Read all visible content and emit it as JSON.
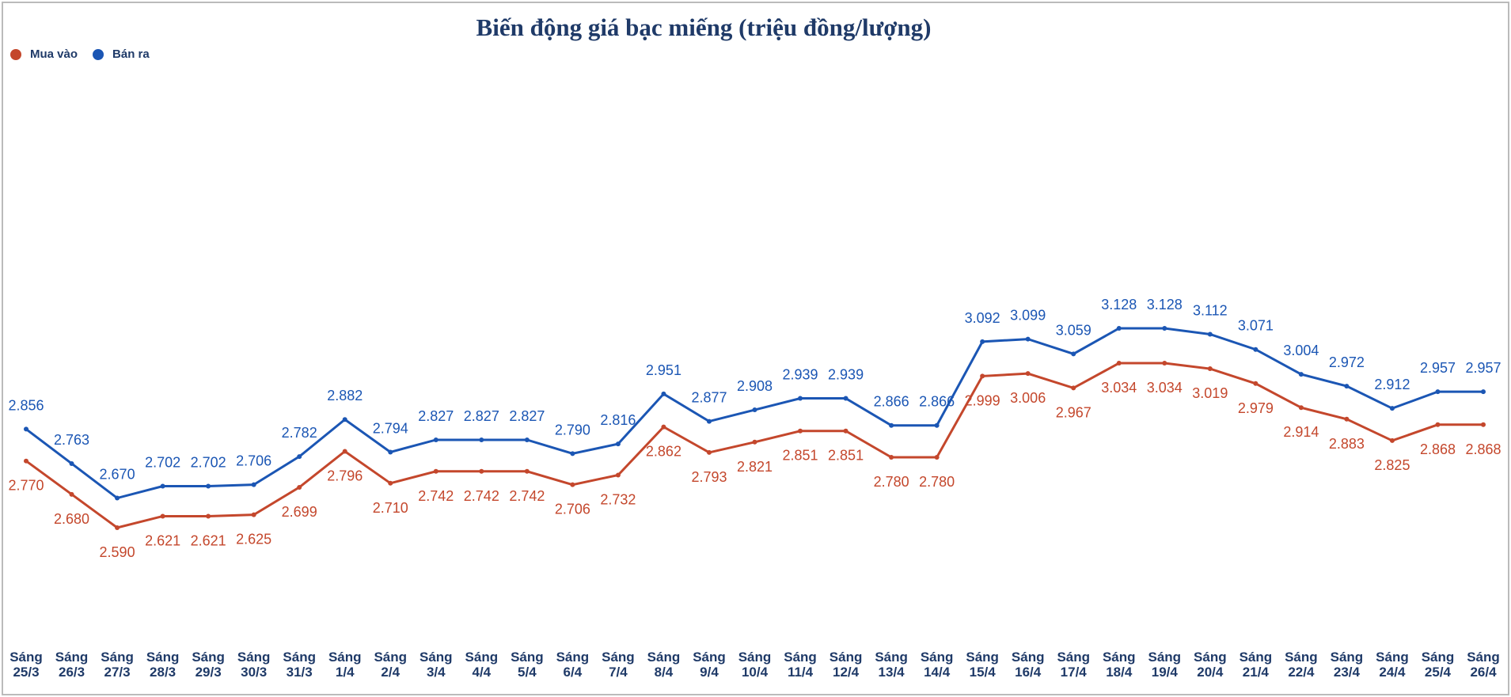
{
  "chart_data": {
    "type": "line",
    "title": "Biến động giá bạc miếng (triệu đồng/lượng)",
    "categories": [
      "Sáng 25/3",
      "Sáng 26/3",
      "Sáng 27/3",
      "Sáng 28/3",
      "Sáng 29/3",
      "Sáng 30/3",
      "Sáng 31/3",
      "Sáng 1/4",
      "Sáng 2/4",
      "Sáng 3/4",
      "Sáng 4/4",
      "Sáng 5/4",
      "Sáng 6/4",
      "Sáng 7/4",
      "Sáng 8/4",
      "Sáng 9/4",
      "Sáng 10/4",
      "Sáng 11/4",
      "Sáng 12/4",
      "Sáng 13/4",
      "Sáng 14/4",
      "Sáng 15/4",
      "Sáng 16/4",
      "Sáng 17/4",
      "Sáng 18/4",
      "Sáng 19/4",
      "Sáng 20/4",
      "Sáng 21/4",
      "Sáng 22/4",
      "Sáng 23/4",
      "Sáng 24/4",
      "Sáng 25/4",
      "Sáng 26/4"
    ],
    "legend": "top-left",
    "series": [
      {
        "name": "Mua vào",
        "color": "#c4472c",
        "values": [
          2.77,
          2.68,
          2.59,
          2.621,
          2.621,
          2.625,
          2.699,
          2.796,
          2.71,
          2.742,
          2.742,
          2.742,
          2.706,
          2.732,
          2.862,
          2.793,
          2.821,
          2.851,
          2.851,
          2.78,
          2.78,
          2.999,
          3.006,
          2.967,
          3.034,
          3.034,
          3.019,
          2.979,
          2.914,
          2.883,
          2.825,
          2.868,
          2.868
        ],
        "value_labels": [
          "2.770",
          "2.680",
          "2.590",
          "2.621",
          "2.621",
          "2.625",
          "2.699",
          "2.796",
          "2.710",
          "2.742",
          "2.742",
          "2.742",
          "2.706",
          "2.732",
          "2.862",
          "2.793",
          "2.821",
          "2.851",
          "2.851",
          "2.780",
          "2.780",
          "2.999",
          "3.006",
          "2.967",
          "3.034",
          "3.034",
          "3.019",
          "2.979",
          "2.914",
          "2.883",
          "2.825",
          "2.868",
          "2.868"
        ]
      },
      {
        "name": "Bán ra",
        "color": "#1b56b4",
        "values": [
          2.856,
          2.763,
          2.67,
          2.702,
          2.702,
          2.706,
          2.782,
          2.882,
          2.794,
          2.827,
          2.827,
          2.827,
          2.79,
          2.816,
          2.951,
          2.877,
          2.908,
          2.939,
          2.939,
          2.866,
          2.866,
          3.092,
          3.099,
          3.059,
          3.128,
          3.128,
          3.112,
          3.071,
          3.004,
          2.972,
          2.912,
          2.957,
          2.957
        ],
        "value_labels": [
          "2.856",
          "2.763",
          "2.670",
          "2.702",
          "2.702",
          "2.706",
          "2.782",
          "2.882",
          "2.794",
          "2.827",
          "2.827",
          "2.827",
          "2.790",
          "2.816",
          "2.951",
          "2.877",
          "2.908",
          "2.939",
          "2.939",
          "2.866",
          "2.866",
          "3.092",
          "3.099",
          "3.059",
          "3.128",
          "3.128",
          "3.112",
          "3.071",
          "3.004",
          "2.972",
          "2.912",
          "2.957",
          "2.957"
        ]
      }
    ]
  }
}
